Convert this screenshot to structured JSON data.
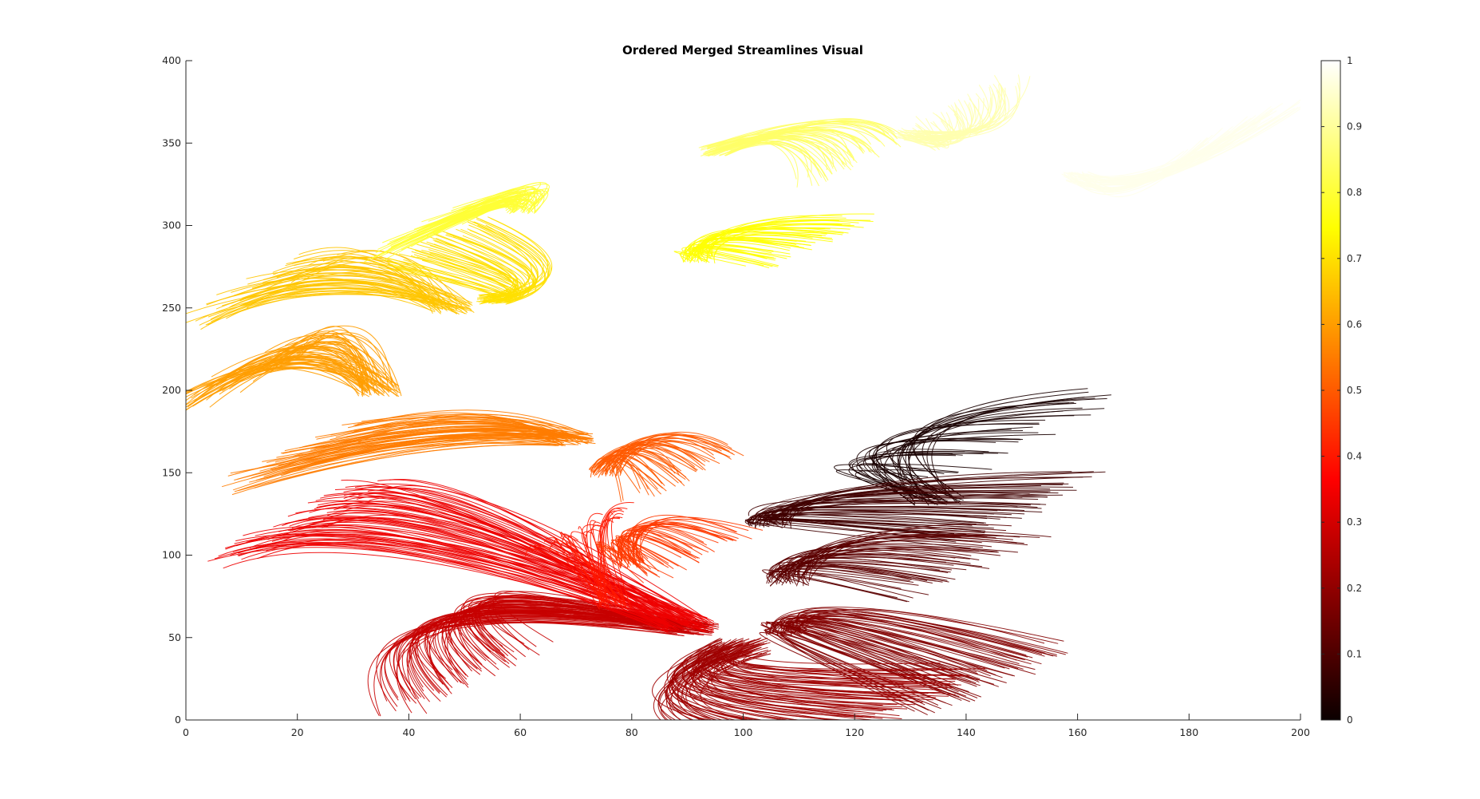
{
  "chart_data": {
    "type": "line",
    "title": "Ordered Merged Streamlines Visual",
    "xlabel": "",
    "ylabel": "",
    "xlim": [
      0,
      200
    ],
    "ylim": [
      0,
      400
    ],
    "x_ticks": [
      0,
      20,
      40,
      60,
      80,
      100,
      120,
      140,
      160,
      180,
      200
    ],
    "y_ticks": [
      0,
      50,
      100,
      150,
      200,
      250,
      300,
      350,
      400
    ],
    "grid": false,
    "colormap": "hot",
    "colorbar": {
      "range": [
        0,
        1
      ],
      "ticks": [
        "0",
        "0.1",
        "0.2",
        "0.3",
        "0.4",
        "0.5",
        "0.6",
        "0.7",
        "0.8",
        "0.9",
        "1"
      ]
    },
    "series": [
      {
        "color_value": 0.02,
        "fan": [
          135,
          135,
          152,
          175,
          110,
          175,
          40
        ],
        "spread": 5
      },
      {
        "color_value": 0.08,
        "fan": [
          105,
          120,
          150,
          128,
          100,
          135,
          60
        ],
        "spread": 4
      },
      {
        "color_value": 0.12,
        "fan": [
          108,
          85,
          140,
          95,
          107,
          110,
          55
        ],
        "spread": 4
      },
      {
        "color_value": 0.18,
        "fan": [
          108,
          55,
          145,
          25,
          103,
          72,
          70
        ],
        "spread": 4
      },
      {
        "color_value": 0.22,
        "fan": [
          100,
          45,
          125,
          5,
          75,
          15,
          90
        ],
        "spread": 5
      },
      {
        "color_value": 0.28,
        "fan": [
          92,
          55,
          50,
          25,
          30,
          90,
          80
        ],
        "spread": 4
      },
      {
        "color_value": 0.34,
        "fan": [
          90,
          58,
          20,
          120,
          40,
          140,
          80
        ],
        "spread": 5
      },
      {
        "color_value": 0.4,
        "fan": [
          77,
          70,
          72,
          115,
          68,
          125,
          35
        ],
        "spread": 3
      },
      {
        "color_value": 0.45,
        "fan": [
          80,
          95,
          92,
          100,
          75,
          130,
          45
        ],
        "spread": 3
      },
      {
        "color_value": 0.5,
        "fan": [
          75,
          150,
          90,
          150,
          80,
          180,
          50
        ],
        "spread": 3
      },
      {
        "color_value": 0.55,
        "fan": [
          70,
          170,
          20,
          160,
          50,
          185,
          70
        ],
        "spread": 4
      },
      {
        "color_value": 0.6,
        "fan": [
          35,
          200,
          8,
          205,
          25,
          245,
          70
        ],
        "spread": 4
      },
      {
        "color_value": 0.66,
        "fan": [
          48,
          250,
          12,
          260,
          30,
          285,
          60
        ],
        "spread": 4
      },
      {
        "color_value": 0.7,
        "fan": [
          55,
          255,
          45,
          290,
          70,
          262,
          60
        ],
        "spread": 3
      },
      {
        "color_value": 0.75,
        "fan": [
          92,
          280,
          112,
          290,
          90,
          300,
          55
        ],
        "spread": 3
      },
      {
        "color_value": 0.8,
        "fan": [
          60,
          310,
          42,
          295,
          65,
          330,
          60
        ],
        "spread": 3
      },
      {
        "color_value": 0.85,
        "fan": [
          95,
          345,
          120,
          340,
          115,
          370,
          55
        ],
        "spread": 3
      },
      {
        "color_value": 0.92,
        "fan": [
          130,
          355,
          140,
          375,
          145,
          345,
          55
        ],
        "spread": 3
      },
      {
        "color_value": 0.98,
        "fan": [
          160,
          330,
          190,
          360,
          170,
          310,
          55
        ],
        "spread": 3
      }
    ]
  }
}
